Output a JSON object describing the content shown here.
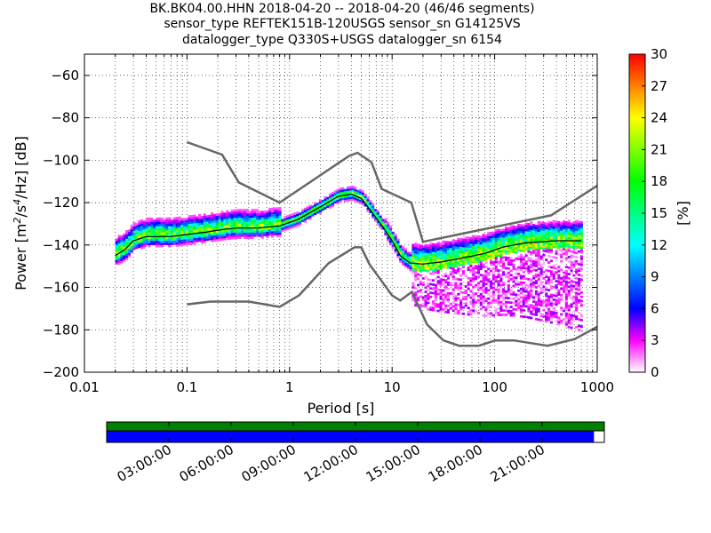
{
  "title_lines": [
    "BK.BK04.00.HHN   2018-04-20 -- 2018-04-20  (46/46 segments)",
    "sensor_type REFTEK151B-120USGS sensor_sn G14125VS",
    "datalogger_type Q330S+USGS datalogger_sn 6154"
  ],
  "chart_data": [
    {
      "type": "heatmap",
      "xlabel": "Period [s]",
      "ylabel_parts": [
        "Power [m",
        "2",
        "/s",
        "4",
        "/Hz] [dB]"
      ],
      "xscale": "log",
      "xlim": [
        0.01,
        1000
      ],
      "ylim": [
        -200,
        -50
      ],
      "x_ticks": [
        0.01,
        0.1,
        1,
        10,
        100,
        1000
      ],
      "x_tick_labels": [
        "0.01",
        "0.1",
        "1",
        "10",
        "100",
        "1000"
      ],
      "y_ticks": [
        -200,
        -180,
        -160,
        -140,
        -120,
        -100,
        -80,
        -60
      ],
      "y_tick_labels": [
        "−200",
        "−180",
        "−160",
        "−140",
        "−120",
        "−100",
        "−80",
        "−60"
      ],
      "grid": true,
      "high_noise_model": {
        "x": [
          0.1,
          0.22,
          0.32,
          0.8,
          3.8,
          4.6,
          6.3,
          7.9,
          15.4,
          20,
          354.8,
          1000
        ],
        "y": [
          -91.5,
          -97.4,
          -110.5,
          -120,
          -98,
          -96.5,
          -101,
          -113.5,
          -120,
          -138.5,
          -126,
          -112
        ]
      },
      "low_noise_model": {
        "x": [
          0.1,
          0.17,
          0.4,
          0.8,
          1.24,
          2.4,
          4.3,
          5,
          6,
          10,
          12,
          15.6,
          21.9,
          31.6,
          45,
          70,
          101,
          154,
          328,
          600,
          1000
        ],
        "y": [
          -168,
          -166.7,
          -166.7,
          -169.2,
          -163.7,
          -148.6,
          -141.1,
          -141.1,
          -149,
          -163.8,
          -166.2,
          -162.1,
          -177.5,
          -185,
          -187.5,
          -187.5,
          -185,
          -185,
          -187.5,
          -184.4,
          -178.6
        ]
      },
      "mean_curve": {
        "x": [
          0.02,
          0.025,
          0.03,
          0.04,
          0.05,
          0.07,
          0.1,
          0.15,
          0.2,
          0.3,
          0.5,
          0.8,
          1.2,
          2,
          3,
          4,
          5,
          6,
          8,
          10,
          12,
          15,
          20,
          30,
          50,
          80,
          120,
          200,
          400,
          700
        ],
        "y": [
          -145,
          -142,
          -138,
          -136,
          -136,
          -136,
          -135,
          -134,
          -133,
          -132,
          -132,
          -131,
          -128,
          -122,
          -117,
          -116,
          -118,
          -123,
          -131,
          -138,
          -145,
          -148.5,
          -149,
          -148,
          -146,
          -144,
          -141,
          -139,
          -138,
          -138
        ]
      },
      "colorbar": {
        "label": "[%]",
        "range": [
          0,
          30
        ],
        "ticks": [
          0,
          3,
          6,
          9,
          12,
          15,
          18,
          21,
          24,
          27,
          30
        ],
        "colors": [
          "#ffffff",
          "#ff00ff",
          "#0000ff",
          "#00ffff",
          "#00ff00",
          "#ffff00",
          "#ff0000"
        ]
      }
    },
    {
      "type": "timeline",
      "tick_labels": [
        "03:00:00",
        "06:00:00",
        "09:00:00",
        "12:00:00",
        "15:00:00",
        "18:00:00",
        "21:00:00"
      ],
      "tick_hours": [
        3,
        6,
        9,
        12,
        15,
        18,
        21
      ],
      "range_hours": [
        0,
        24
      ],
      "data_coverage_end_hour": 23.5,
      "top_bar_color": "#008000",
      "bottom_bar_color": "#0000ff"
    }
  ]
}
